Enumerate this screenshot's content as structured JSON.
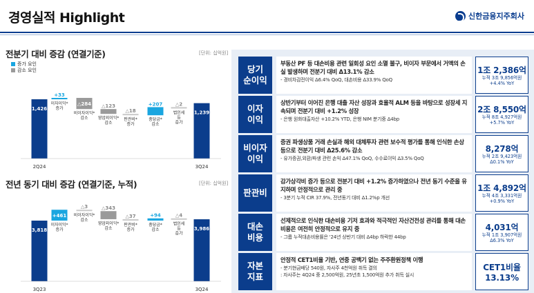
{
  "header": {
    "title": "경영실적 Highlight",
    "brand": "신한금융지주회사"
  },
  "left": {
    "chart1": {
      "title": "전분기 대비 증감 (연결기준)",
      "unit": "[단위: 십억원]"
    },
    "chart2": {
      "title": "전년 동기 대비 증감 (연결기준, 누적)",
      "unit": "[단위: 십억원]"
    },
    "legend": {
      "increase": "증가 요인",
      "decrease": "감소 요인"
    }
  },
  "colors": {
    "navy": "#0b3d8c",
    "increase": "#1aa6e0",
    "decrease": "#9a9a9a",
    "small": "#c9c9c9"
  },
  "chart_data": [
    {
      "type": "bar",
      "title": "전분기 대비 증감 (연결기준)",
      "unit": "[단위: 십억원]",
      "categories": [
        "2Q24",
        "이자이익* 증가",
        "비이자이익* 감소",
        "영업외이익* 감소",
        "판관비* 증가",
        "충당금* 감소",
        "법인세 등 증가",
        "3Q24"
      ],
      "kinds": [
        "total",
        "inc",
        "dec",
        "dec",
        "dec",
        "inc",
        "dec",
        "total"
      ],
      "value_labels": [
        "1,426",
        "+33",
        "△284",
        "△123",
        "△18",
        "+207",
        "△2",
        "1,239"
      ],
      "values": [
        1426,
        33,
        -284,
        -123,
        -18,
        207,
        -2,
        1239
      ]
    },
    {
      "type": "bar",
      "title": "전년 동기 대비 증감 (연결기준, 누적)",
      "unit": "[단위: 십억원]",
      "categories": [
        "3Q23",
        "이자이익* 증가",
        "비이자이익* 감소",
        "영업외이익* 감소",
        "판관비* 증가",
        "충당금* 감소",
        "법인세 등 증가",
        "3Q24"
      ],
      "kinds": [
        "total",
        "inc",
        "dec",
        "dec",
        "dec",
        "inc",
        "dec",
        "total"
      ],
      "value_labels": [
        "3,818",
        "+461",
        "△3",
        "△343",
        "△37",
        "+94",
        "△4",
        "3,986"
      ],
      "values": [
        3818,
        461,
        -3,
        -343,
        -37,
        94,
        -4,
        3986
      ]
    }
  ],
  "rows": [
    {
      "label": "당기\n순이익",
      "main": "부동산 PF 등 대손비용 관련 일회성 요인 소멸 불구, 비이자 부문에서 거액의 손실 발생하며 전분기 대비 Δ13.1% 감소",
      "sub": "- 경비차감전이익 Δ6.4% QoQ, 대손비용 Δ33.9% QoQ",
      "value": "1조 2,386억",
      "note1": "누적 3조 9,856억원",
      "note2": "+4.4% YoY"
    },
    {
      "label": "이자\n이익",
      "main": "상반기부터 이어진 은행 대출 자산 성장과 효율적 ALM 등을 바탕으로 성장세 지속되며 전분기 대비 +1.2% 성장",
      "sub": "- 은행 원화대출자산 +10.2% YTD, 은행 NIM 분기중 Δ4bp",
      "value": "2조 8,550억",
      "note1": "누적 8조 4,927억원",
      "note2": "+5.7% YoY"
    },
    {
      "label": "비이자\n이익",
      "main": "증권 파생상품 거래 손실과 해외 대체투자 관련 보수적 평가를 통해 인식한 손상 등으로 전분기 대비 Δ25.6% 감소",
      "sub": "- 유가증권,외환/파생 관련 손익 Δ47.1% QoQ, 수수료이익 Δ3.5% QoQ",
      "value": "8,278억",
      "note1": "누적 2조 9,423억원",
      "note2": "Δ0.1% YoY"
    },
    {
      "label": "판관비",
      "main": "감가상각비 증가 등으로 전분기 대비 +1.2% 증가하였으나 전년 동기 수준을 유지하며 안정적으로 관리 중",
      "sub": "- 3분기 누적 CIR 37.9%, 전년동기 대비 Δ1.2%p 개선",
      "value": "1조 4,892억",
      "note1": "누적 4조 3,331억원",
      "note2": "+0.9% YoY"
    },
    {
      "label": "대손\n비용",
      "main": "선제적으로 인식한 대손비용 기저 효과와 적극적인 자산건전성 관리를 통해 대손비용은 여전히 안정적으로 유지 중",
      "sub": "- 그룹 누적대손비용률은 '24년 상반기 대비 Δ4bp 하락한 44bp",
      "value": "4,031억",
      "note1": "누적 1조 3,907억원",
      "note2": "Δ6.3% YoY"
    },
    {
      "label": "자본\n지표",
      "main": "안정적 CET1비율 기반, 연중 공백기 없는 주주환원정책 이행",
      "sub": "- 분기현금배당 540원, 자사주 4천억원 취득 결의",
      "sub2": ": 자사주는 4Q24 중 2,500억원, 25년초 1,500억원 추가 취득 실시",
      "value": "CET1비율",
      "value2": "13.13%"
    }
  ]
}
